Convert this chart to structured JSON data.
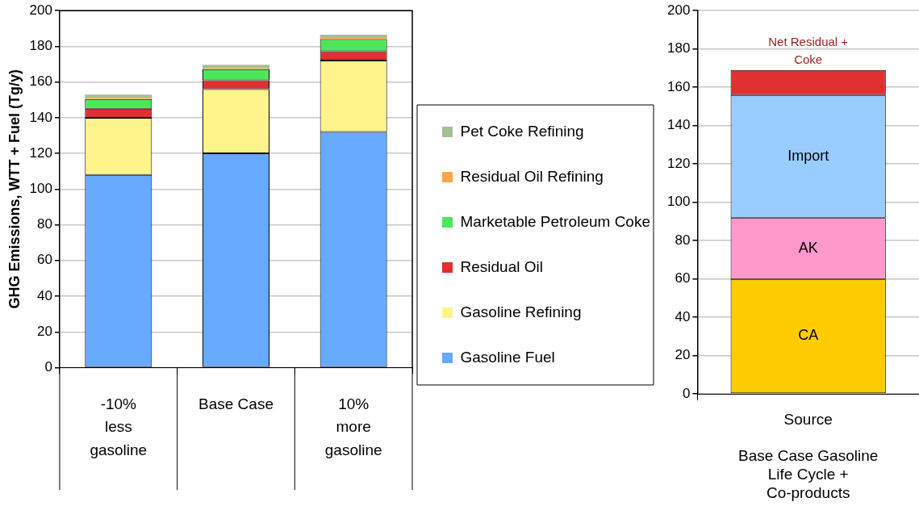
{
  "chart_data": [
    {
      "type": "bar",
      "stacked": true,
      "ylabel": "GHG Emissions, WTT + Fuel (Tg/y)",
      "categories": [
        "-10%\nless\ngasoline",
        "Base Case",
        "10%\nmore\ngasoline"
      ],
      "ylim": [
        0,
        200
      ],
      "yticks": [
        0,
        20,
        40,
        60,
        80,
        100,
        120,
        140,
        160,
        180,
        200
      ],
      "grid": "y",
      "legend": "right",
      "series": [
        {
          "name": "Gasoline Fuel",
          "color": "#66aaff",
          "values": [
            108,
            120,
            132
          ]
        },
        {
          "name": "Gasoline Refining",
          "color": "#fff38c",
          "values": [
            32,
            36,
            40
          ]
        },
        {
          "name": "Residual Oil",
          "color": "#e03030",
          "values": [
            5,
            5,
            5.2
          ]
        },
        {
          "name": "Marketable Petroleum Coke",
          "color": "#4ce65a",
          "values": [
            5.5,
            6.2,
            6.8
          ]
        },
        {
          "name": "Residual Oil Refining",
          "color": "#ffa64d",
          "values": [
            0.5,
            0.6,
            1.2
          ]
        },
        {
          "name": "Pet Coke Refining",
          "color": "#a3bf94",
          "values": [
            2,
            1.9,
            1.3
          ]
        }
      ]
    },
    {
      "type": "bar",
      "stacked": true,
      "xlabel": "Base Case Gasoline Life Cycle + Co-products",
      "categories": [
        "Source"
      ],
      "ylim": [
        0,
        200
      ],
      "yticks": [
        0,
        20,
        40,
        60,
        80,
        100,
        120,
        140,
        160,
        180,
        200
      ],
      "grid": "y",
      "series": [
        {
          "name": "CA",
          "color": "#ffcc00",
          "values": [
            60
          ]
        },
        {
          "name": "AK",
          "color": "#ff99cc",
          "values": [
            32
          ]
        },
        {
          "name": "Import",
          "color": "#99ccff",
          "values": [
            64
          ]
        },
        {
          "name": "Net Residual + Coke",
          "color": "#e03030",
          "values": [
            13
          ]
        }
      ]
    }
  ]
}
